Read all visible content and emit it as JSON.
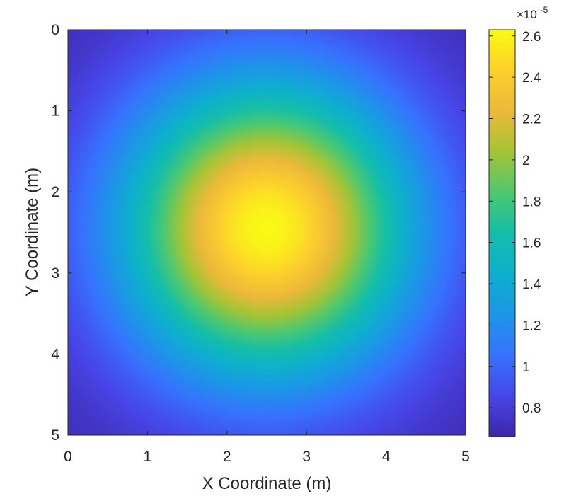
{
  "chart_data": {
    "type": "heatmap",
    "title": "",
    "xlabel": "X Coordinate (m)",
    "ylabel": "Y Coordinate (m)",
    "xlim": [
      0,
      5
    ],
    "ylim": [
      0,
      5
    ],
    "y_direction": "reversed",
    "x_ticks": [
      "0",
      "1",
      "2",
      "3",
      "4",
      "5"
    ],
    "y_ticks": [
      "0",
      "1",
      "2",
      "3",
      "4",
      "5"
    ],
    "colormap": "parula",
    "colorbar": {
      "placement": "right",
      "exponent_label": "×10",
      "exponent_power": "-5",
      "ticks": [
        "0.8",
        "1",
        "1.2",
        "1.4",
        "1.6",
        "1.8",
        "2",
        "2.2",
        "2.4",
        "2.6"
      ],
      "tick_values": [
        0.8,
        1.0,
        1.2,
        1.4,
        1.6,
        1.8,
        2.0,
        2.2,
        2.4,
        2.6
      ],
      "range": [
        0.66,
        2.63
      ]
    },
    "field": {
      "peak": {
        "x": 2.5,
        "y": 2.45,
        "value": 2.62
      },
      "corner_value": 0.68,
      "spread_x": 0.52,
      "spread_y": 0.5
    },
    "grid": false,
    "box": true
  }
}
